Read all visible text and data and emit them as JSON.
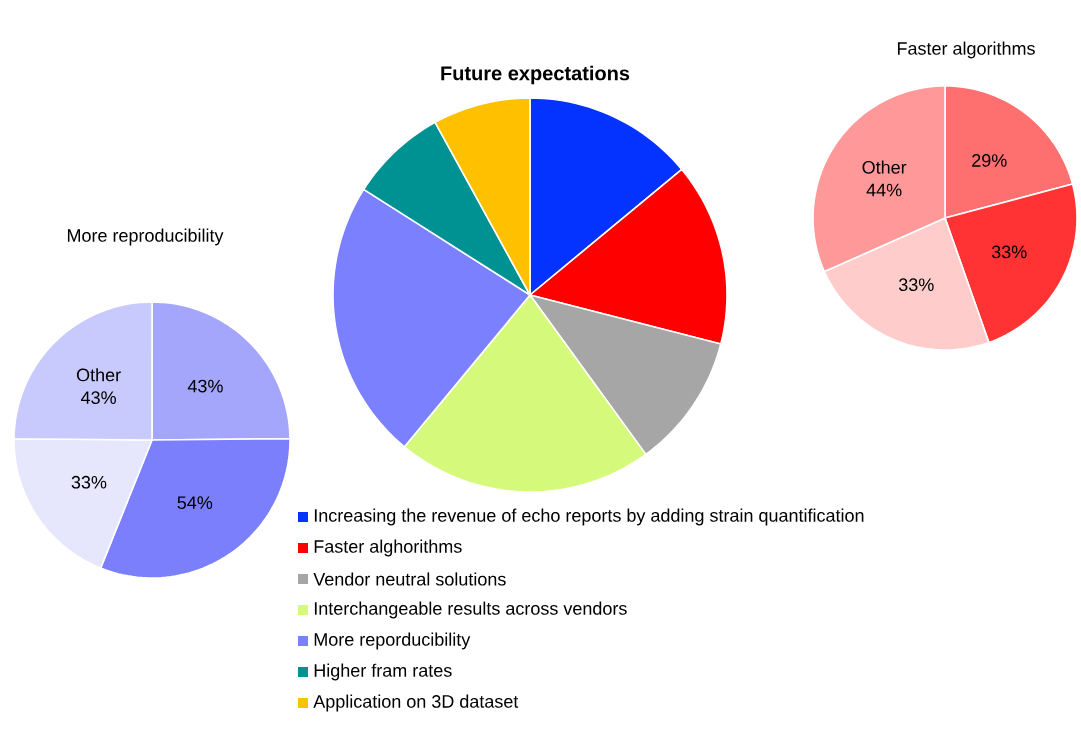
{
  "chart_data": [
    {
      "type": "pie",
      "title": "Future expectations",
      "categories": [
        "Increasing the revenue of echo reports by adding strain quantification",
        "Faster alghorithms",
        "Vendor neutral solutions",
        "Interchangeable results across vendors",
        "More reporducibility",
        "Higher fram rates",
        "Application on 3D dataset"
      ],
      "values": [
        14,
        15,
        11,
        21,
        23,
        8,
        8
      ],
      "colors": [
        "#0433ff",
        "#ff0000",
        "#a6a6a6",
        "#d5f97a",
        "#7b80ff",
        "#009193",
        "#ffc000"
      ],
      "legend": "bottom"
    },
    {
      "type": "pie",
      "title": "More reproducibility",
      "categories": [
        null,
        null,
        null,
        "Other"
      ],
      "values": [
        43,
        54,
        33,
        43
      ],
      "value_labels": [
        "43%",
        "54%",
        "33%",
        "43%"
      ],
      "colors": [
        "#a3a6fb",
        "#7b7ffb",
        "#e6e6fc",
        "#c8c9fc"
      ]
    },
    {
      "type": "pie",
      "title": "Faster algorithms",
      "categories": [
        null,
        null,
        null,
        "Other"
      ],
      "values": [
        29,
        33,
        33,
        44
      ],
      "value_labels": [
        "29%",
        "33%",
        "33%",
        "44%"
      ],
      "colors": [
        "#fe7070",
        "#ff3333",
        "#ffcccc",
        "#ff9999"
      ]
    }
  ]
}
